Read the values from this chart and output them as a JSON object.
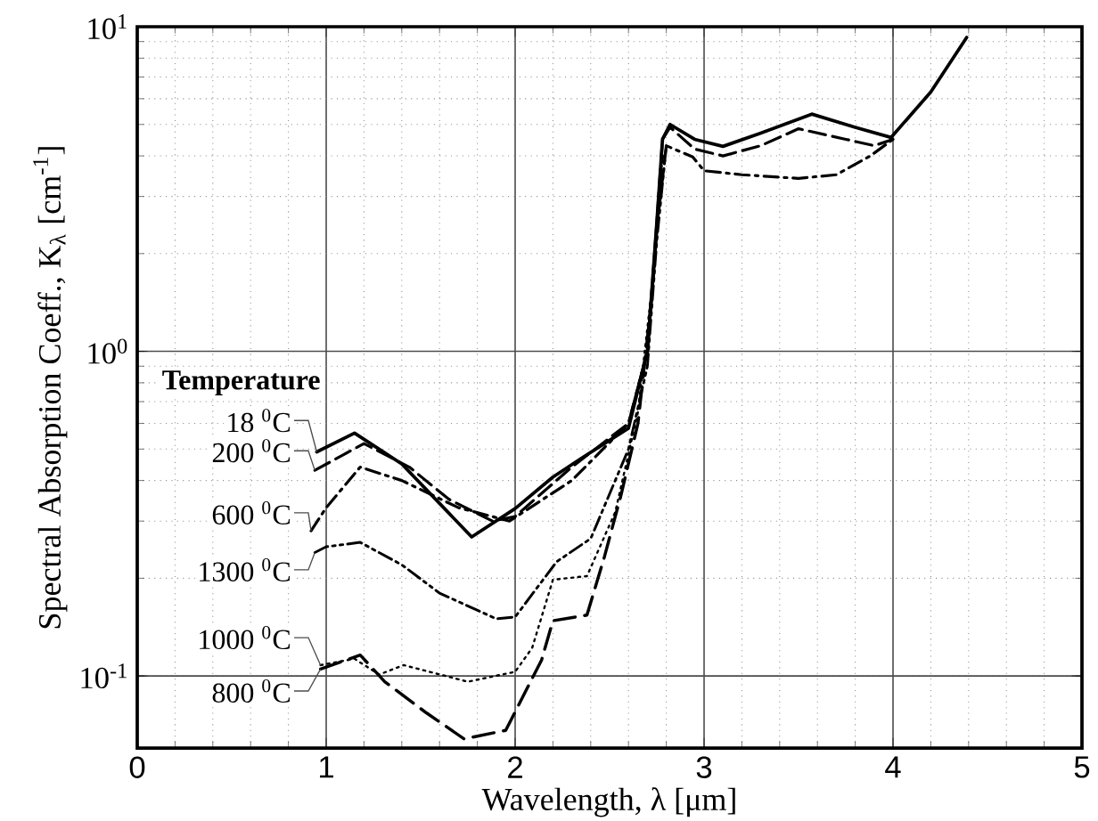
{
  "chart_data": {
    "type": "line",
    "xlabel": "Wavelength, λ [μm]",
    "ylabel": "Spectral Absorption Coeff., K$_{λ}$ [cm$^{-1}$]",
    "legend_title": "Temperature",
    "log": "y",
    "grid": true,
    "xlim": [
      0,
      5
    ],
    "xticks": [
      0,
      1,
      2,
      3,
      4,
      5
    ],
    "ylim": [
      0.06,
      10
    ],
    "yticks": [
      {
        "value": 0.1,
        "label": "10$^{-1}$"
      },
      {
        "value": 1,
        "label": "10$^{0}$"
      },
      {
        "value": 10,
        "label": "10$^{1}$"
      }
    ],
    "series": [
      {
        "name": "18 $^{0}$C",
        "color": "#000000",
        "line_style": "solid",
        "x": [
          0.95,
          1.15,
          1.4,
          1.6,
          1.77,
          2.0,
          2.2,
          2.35,
          2.6,
          2.7,
          2.75,
          2.78,
          2.82,
          2.95,
          3.1,
          3.3,
          3.57,
          3.8,
          3.99,
          4.2,
          4.39
        ],
        "values": [
          0.49,
          0.56,
          0.45,
          0.34,
          0.268,
          0.328,
          0.41,
          0.468,
          0.58,
          1.0,
          2.5,
          4.5,
          5.0,
          4.5,
          4.28,
          4.7,
          5.38,
          4.9,
          4.56,
          6.3,
          9.27
        ]
      },
      {
        "name": "200 $^{0}$C",
        "color": "#000000",
        "line_style": "dashed",
        "x": [
          0.94,
          1.2,
          1.44,
          1.65,
          1.88,
          2.0,
          2.3,
          2.6,
          2.7,
          2.75,
          2.78,
          2.82,
          2.95,
          3.1,
          3.3,
          3.5,
          3.75,
          3.9,
          4.0
        ],
        "values": [
          0.43,
          0.52,
          0.44,
          0.35,
          0.3,
          0.31,
          0.44,
          0.6,
          1.0,
          2.5,
          4.5,
          4.9,
          4.2,
          4.0,
          4.3,
          4.85,
          4.5,
          4.3,
          4.5
        ]
      },
      {
        "name": "600 $^{0}$C",
        "color": "#000000",
        "line_style": "dashdot",
        "x": [
          0.92,
          1.0,
          1.18,
          1.4,
          1.7,
          1.97,
          2.3,
          2.6,
          2.7,
          2.75,
          2.8,
          2.94,
          3.0,
          3.2,
          3.5,
          3.7,
          3.88,
          4.0
        ],
        "values": [
          0.28,
          0.33,
          0.44,
          0.4,
          0.33,
          0.3,
          0.4,
          0.6,
          1.0,
          2.4,
          4.3,
          3.97,
          3.6,
          3.5,
          3.41,
          3.5,
          4.0,
          4.5
        ]
      },
      {
        "name": "1300 $^{0}$C",
        "color": "#000000",
        "line_style": "dashdotdot",
        "x": [
          0.94,
          1.0,
          1.18,
          1.4,
          1.6,
          1.9,
          2.0,
          2.22,
          2.4,
          2.6,
          2.7,
          2.75,
          2.8
        ],
        "values": [
          0.24,
          0.25,
          0.258,
          0.22,
          0.18,
          0.15,
          0.152,
          0.225,
          0.265,
          0.5,
          0.9,
          2.2,
          4.3
        ]
      },
      {
        "name": "1000 $^{0}$C",
        "color": "#000000",
        "line_style": "dotted",
        "x": [
          0.97,
          1.15,
          1.28,
          1.41,
          1.75,
          2.0,
          2.09,
          2.2,
          2.38,
          2.53,
          2.65,
          2.72,
          2.78
        ],
        "values": [
          0.108,
          0.113,
          0.101,
          0.108,
          0.096,
          0.103,
          0.122,
          0.198,
          0.203,
          0.32,
          0.65,
          1.5,
          4.0
        ]
      },
      {
        "name": "800 $^{0}$C",
        "color": "#000000",
        "line_style": "longdashed",
        "x": [
          0.97,
          1.18,
          1.31,
          1.53,
          1.73,
          1.95,
          2.14,
          2.2,
          2.38,
          2.47,
          2.56,
          2.65,
          2.72,
          2.78
        ],
        "values": [
          0.105,
          0.116,
          0.096,
          0.077,
          0.064,
          0.068,
          0.112,
          0.148,
          0.154,
          0.23,
          0.36,
          0.6,
          1.4,
          4.0
        ]
      }
    ]
  }
}
